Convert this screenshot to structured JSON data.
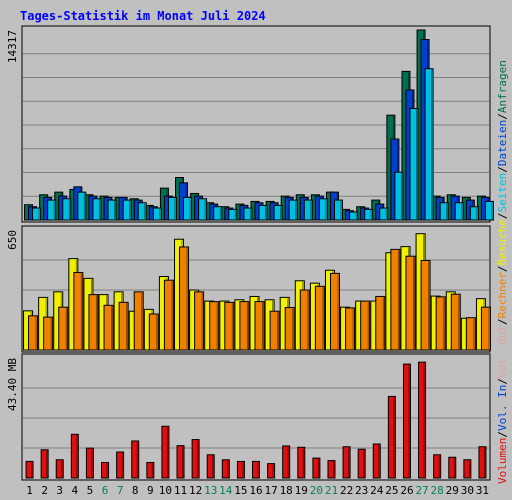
{
  "chart_data": {
    "type": "bar",
    "title": "Tages-Statistik im Monat Juli 2024",
    "categories": [
      "1",
      "2",
      "3",
      "4",
      "5",
      "6",
      "7",
      "8",
      "9",
      "10",
      "11",
      "12",
      "13",
      "14",
      "15",
      "16",
      "17",
      "18",
      "19",
      "20",
      "21",
      "22",
      "23",
      "24",
      "25",
      "26",
      "27",
      "28",
      "29",
      "30",
      "31"
    ],
    "weekend_days": [
      6,
      7,
      13,
      14,
      20,
      21,
      27,
      28
    ],
    "panels": [
      {
        "id": "top",
        "max_label": "14317",
        "ymax": 14317,
        "series": [
          {
            "name": "Anfragen",
            "color": "#007050",
            "values": [
              1150,
              1900,
              2100,
              2300,
              1900,
              1800,
              1700,
              1600,
              1100,
              2400,
              3200,
              2000,
              1300,
              1000,
              1200,
              1400,
              1400,
              1800,
              1900,
              1900,
              2100,
              800,
              1000,
              1500,
              7900,
              11200,
              14317,
              1800,
              1900,
              1700,
              1800
            ]
          },
          {
            "name": "Dateien",
            "color": "#0040d0",
            "values": [
              1000,
              1700,
              1800,
              2500,
              1800,
              1700,
              1700,
              1500,
              1000,
              1800,
              2800,
              1800,
              1200,
              900,
              1100,
              1300,
              1300,
              1700,
              1700,
              1800,
              2100,
              700,
              900,
              1200,
              6100,
              9800,
              13600,
              1700,
              1800,
              1500,
              1700
            ]
          },
          {
            "name": "Seiten",
            "color": "#00c0e0",
            "values": [
              900,
              1500,
              1600,
              2100,
              1600,
              1500,
              1500,
              1300,
              900,
              1700,
              1700,
              1600,
              1000,
              800,
              900,
              1100,
              1100,
              1500,
              1500,
              1600,
              1500,
              600,
              800,
              900,
              3600,
              8400,
              11400,
              1300,
              1300,
              1000,
              1400
            ]
          }
        ]
      },
      {
        "id": "middle",
        "max_label": "650",
        "ymax": 650,
        "series": [
          {
            "name": "Besuche",
            "color": "#f0f000",
            "values": [
              212,
              285,
              315,
              495,
              388,
              300,
              315,
              210,
              220,
              398,
              600,
              325,
              265,
              265,
              272,
              290,
              272,
              285,
              375,
              362,
              432,
              232,
              265,
              265,
              527,
              560,
              630,
              292,
              315,
              172,
              278
            ]
          },
          {
            "name": "Rechner",
            "color": "#f08000",
            "values": [
              185,
              178,
              232,
              420,
              300,
              242,
              258,
              315,
              195,
              378,
              558,
              315,
              262,
              258,
              262,
              262,
              210,
              230,
              325,
              345,
              415,
              228,
              265,
              290,
              545,
              508,
              485,
              288,
              302,
              175,
              232
            ]
          }
        ]
      },
      {
        "id": "bottom",
        "max_label": "43.40 MB",
        "ymax": 43.4,
        "series": [
          {
            "name": "Vol. Out",
            "color": "#e0a0a0",
            "values": []
          },
          {
            "name": "Vol. In",
            "color": "#0040d0",
            "values": []
          },
          {
            "name": "Volumen",
            "color": "#e01010",
            "values": [
              6.0,
              10.2,
              6.6,
              15.8,
              10.8,
              5.6,
              9.4,
              13.4,
              5.6,
              18.7,
              11.7,
              13.9,
              8.4,
              6.6,
              6.0,
              6.0,
              5.2,
              11.6,
              11.1,
              7.2,
              6.3,
              11.3,
              10.4,
              12.3,
              29.5,
              41.2,
              41.9,
              8.4,
              7.5,
              6.6,
              11.3
            ]
          }
        ]
      }
    ],
    "legend_right": [
      {
        "text": "Anfragen",
        "color": "#007050"
      },
      {
        "text": "Dateien",
        "color": "#0040d0"
      },
      {
        "text": "Seiten",
        "color": "#00c0e0"
      },
      {
        "text": "Besuche",
        "color": "#f0f000"
      },
      {
        "text": "Rechner",
        "color": "#f08000"
      },
      {
        "text": "Vol. Out",
        "color": "#e0a0a0"
      },
      {
        "text": "Vol. In",
        "color": "#0040d0"
      },
      {
        "text": "Volumen",
        "color": "#e01010"
      }
    ],
    "colors": {
      "background": "#c0c0c0",
      "plot_background": "#c0c0c0",
      "title": "#0000ff",
      "gridline": "#808080",
      "weekend_label": "#00805a",
      "weekday_label": "#000000"
    },
    "grid": true
  }
}
